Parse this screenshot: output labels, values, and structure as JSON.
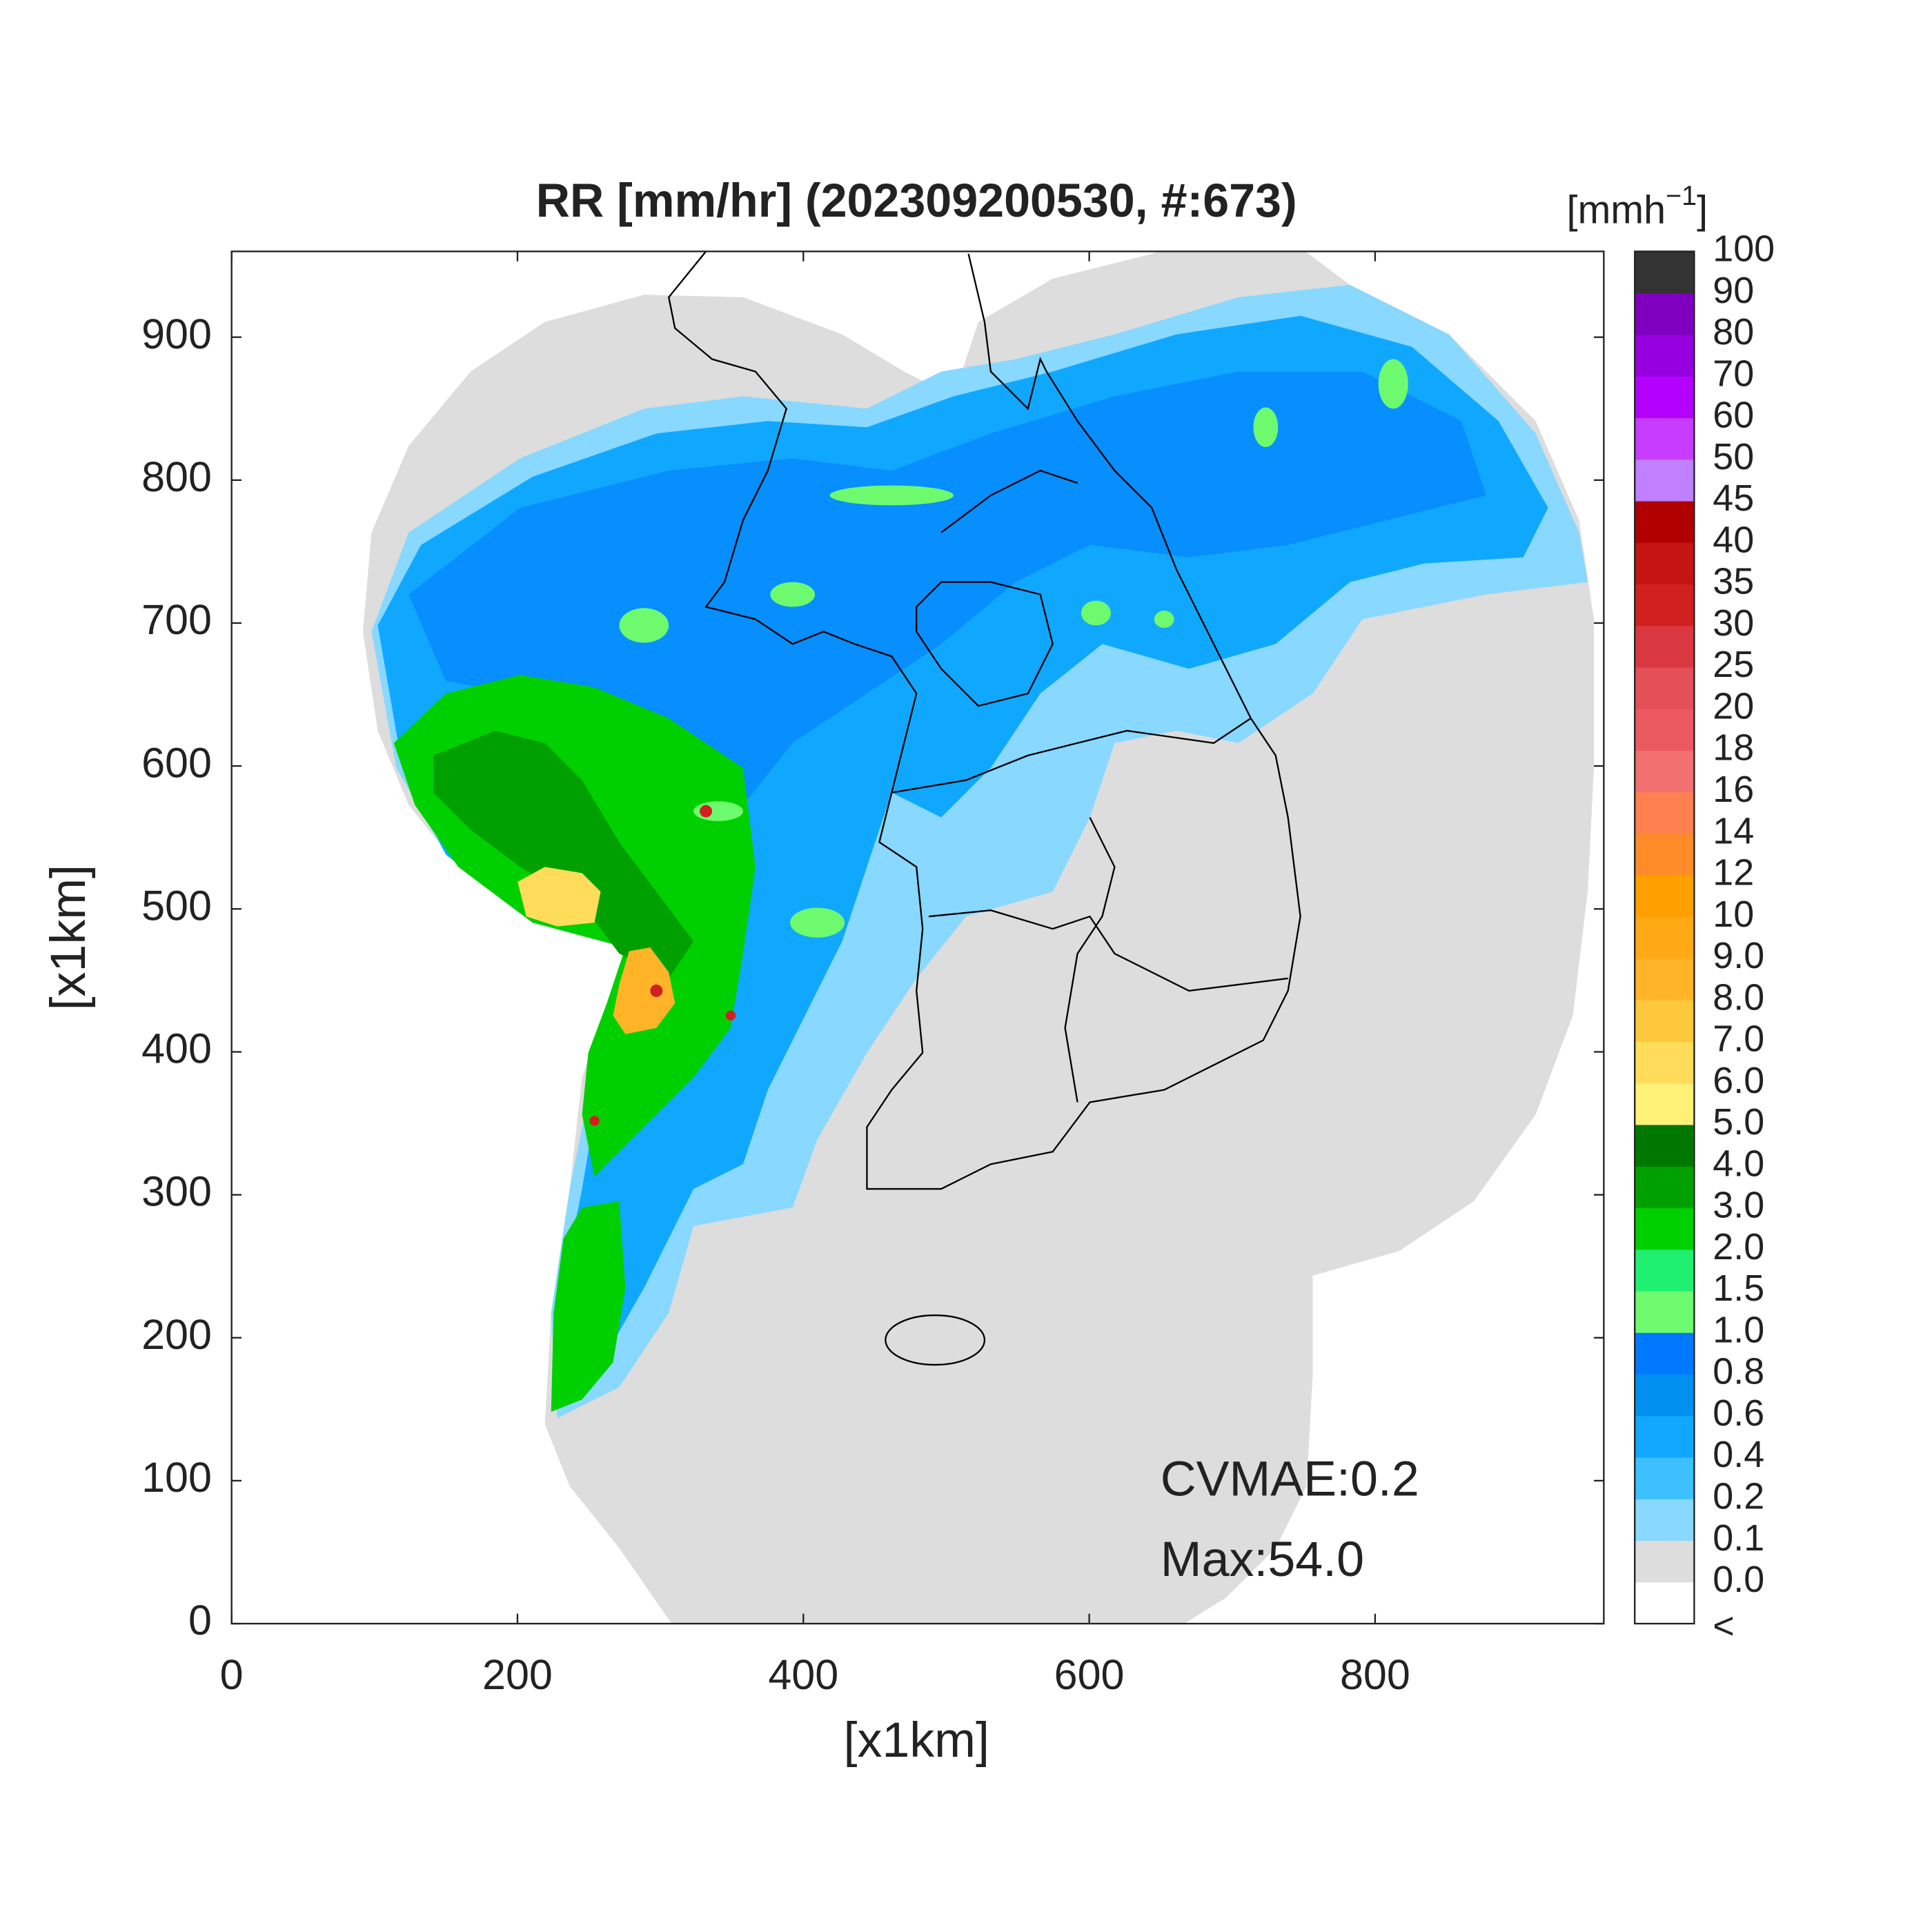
{
  "chart_data": {
    "type": "map",
    "title": "RR [mm/hr] (202309200530, #:673)",
    "xlabel": "[x1km]",
    "ylabel": "[x1km]",
    "xlim": [
      0,
      960
    ],
    "ylim": [
      0,
      960
    ],
    "xticks": [
      0,
      200,
      400,
      600,
      800
    ],
    "yticks": [
      0,
      100,
      200,
      300,
      400,
      500,
      600,
      700,
      800,
      900
    ],
    "annotations": [
      "CVMAE:0.2",
      "Max:54.0"
    ],
    "colorbar": {
      "label": [
        "[mmh",
        "−1",
        "]"
      ],
      "under_label": "<",
      "under_color": "#ffffff",
      "levels": [
        {
          "value": 0,
          "label": "0.0"
        },
        0.1,
        0.2,
        0.4,
        0.6,
        0.8,
        {
          "value": 1,
          "label": "1.0"
        },
        1.5,
        {
          "value": 2,
          "label": "2.0"
        },
        {
          "value": 3,
          "label": "3.0"
        },
        {
          "value": 4,
          "label": "4.0"
        },
        {
          "value": 5,
          "label": "5.0"
        },
        {
          "value": 6,
          "label": "6.0"
        },
        {
          "value": 7,
          "label": "7.0"
        },
        {
          "value": 8,
          "label": "8.0"
        },
        {
          "value": 9,
          "label": "9.0"
        },
        10,
        12,
        14,
        16,
        18,
        20,
        25,
        30,
        35,
        40,
        45,
        50,
        60,
        70,
        80,
        90,
        100
      ],
      "colors": [
        "#dddddd",
        "#88d8ff",
        "#3cc0ff",
        "#10a8ff",
        "#0090f0",
        "#0078ff",
        "#6efa6e",
        "#20f070",
        "#00d000",
        "#00a000",
        "#007800",
        "#fff078",
        "#ffdc5a",
        "#ffc83c",
        "#ffb428",
        "#ffaa14",
        "#ff9f00",
        "#ff8c28",
        "#ff8050",
        "#f27070",
        "#ea5a60",
        "#e45058",
        "#da3840",
        "#d02020",
        "#c41414",
        "#b00000",
        "#c080ff",
        "#c83cff",
        "#b300ff",
        "#9600e0",
        "#7f00bf",
        "#333333"
      ]
    }
  }
}
